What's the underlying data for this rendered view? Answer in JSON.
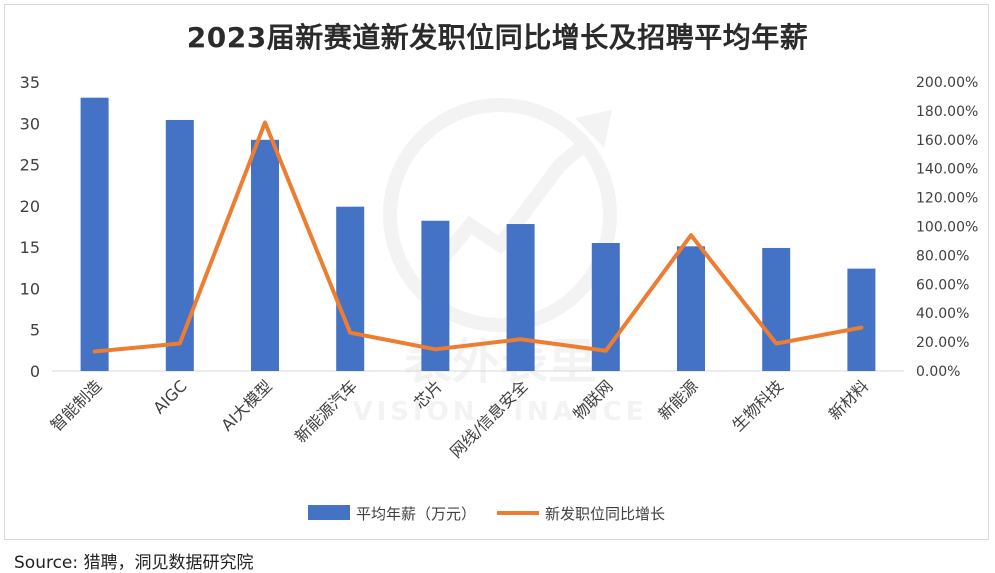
{
  "chart_data": {
    "type": "bar",
    "title": "2023届新赛道新发职位同比增长及招聘平均年薪",
    "categories": [
      "智能制造",
      "AIGC",
      "AI大模型",
      "新能源汽车",
      "芯片",
      "网线/信息安全",
      "物联网",
      "新能源",
      "生物科技",
      "新材料"
    ],
    "series": [
      {
        "name": "平均年薪（万元）",
        "chart": "bar",
        "axis": "left",
        "values": [
          33.1,
          30.4,
          28.0,
          19.9,
          18.2,
          17.8,
          15.5,
          15.1,
          14.9,
          12.4
        ]
      },
      {
        "name": "新发职位同比增长",
        "chart": "line",
        "axis": "right",
        "values": [
          0.135,
          0.19,
          1.72,
          0.265,
          0.15,
          0.22,
          0.14,
          0.94,
          0.19,
          0.3
        ]
      }
    ],
    "left_axis": {
      "ylim": [
        0,
        35
      ],
      "ticks": [
        "0",
        "5",
        "10",
        "15",
        "20",
        "25",
        "30",
        "35"
      ]
    },
    "right_axis": {
      "ylim": [
        0,
        2.0
      ],
      "ticks": [
        "0.00%",
        "20.00%",
        "40.00%",
        "60.00%",
        "80.00%",
        "100.00%",
        "120.00%",
        "140.00%",
        "160.00%",
        "180.00%",
        "200.00%"
      ]
    },
    "grid": false,
    "legend_position": "bottom",
    "colors": {
      "bar": "#4472c4",
      "line": "#ed7d31"
    },
    "watermark": [
      "表外表里",
      "VISION FINANCE"
    ]
  },
  "source": "Source: 猎聘，洞见数据研究院"
}
